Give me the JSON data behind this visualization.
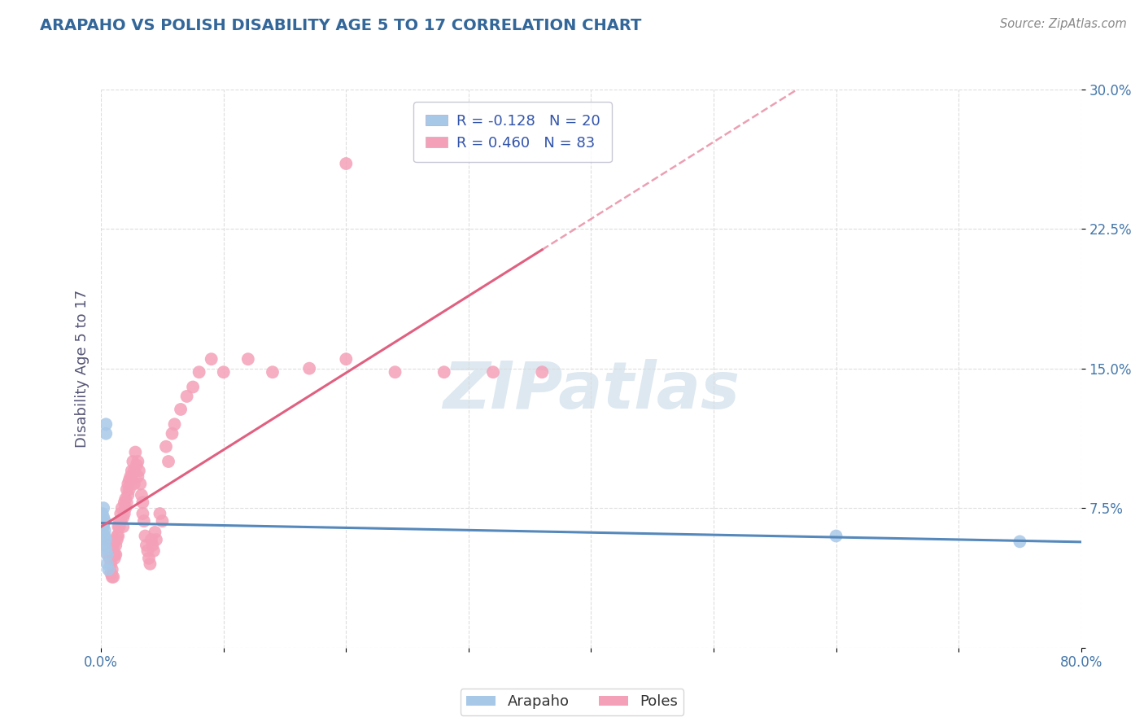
{
  "title": "ARAPAHO VS POLISH DISABILITY AGE 5 TO 17 CORRELATION CHART",
  "source": "Source: ZipAtlas.com",
  "ylabel": "Disability Age 5 to 17",
  "xlim": [
    0.0,
    0.8
  ],
  "ylim": [
    0.0,
    0.3
  ],
  "arapaho_R": -0.128,
  "arapaho_N": 20,
  "poles_R": 0.46,
  "poles_N": 83,
  "arapaho_color": "#a8c8e8",
  "poles_color": "#f4a0b8",
  "arapaho_line_color": "#5588bb",
  "poles_line_color": "#e06080",
  "background_color": "#ffffff",
  "grid_color": "#dddddd",
  "title_color": "#336699",
  "axis_label_color": "#555577",
  "tick_color": "#4477aa",
  "legend_R_color": "#3355aa",
  "watermark_color": "#dde8f0",
  "arapaho_x": [
    0.001,
    0.001,
    0.001,
    0.002,
    0.002,
    0.002,
    0.002,
    0.003,
    0.003,
    0.003,
    0.003,
    0.004,
    0.004,
    0.004,
    0.004,
    0.005,
    0.005,
    0.006,
    0.6,
    0.75
  ],
  "arapaho_y": [
    0.072,
    0.068,
    0.065,
    0.075,
    0.07,
    0.065,
    0.06,
    0.068,
    0.063,
    0.06,
    0.055,
    0.115,
    0.12,
    0.058,
    0.053,
    0.05,
    0.045,
    0.042,
    0.06,
    0.057
  ],
  "poles_x": [
    0.005,
    0.006,
    0.007,
    0.007,
    0.008,
    0.008,
    0.009,
    0.009,
    0.01,
    0.01,
    0.01,
    0.011,
    0.011,
    0.012,
    0.012,
    0.013,
    0.013,
    0.014,
    0.014,
    0.015,
    0.015,
    0.016,
    0.016,
    0.017,
    0.018,
    0.018,
    0.019,
    0.019,
    0.02,
    0.02,
    0.021,
    0.021,
    0.022,
    0.022,
    0.023,
    0.023,
    0.024,
    0.025,
    0.025,
    0.026,
    0.027,
    0.027,
    0.028,
    0.029,
    0.03,
    0.03,
    0.031,
    0.032,
    0.033,
    0.034,
    0.034,
    0.035,
    0.036,
    0.037,
    0.038,
    0.039,
    0.04,
    0.041,
    0.042,
    0.043,
    0.044,
    0.045,
    0.048,
    0.05,
    0.053,
    0.055,
    0.058,
    0.06,
    0.065,
    0.07,
    0.075,
    0.08,
    0.09,
    0.1,
    0.12,
    0.14,
    0.17,
    0.2,
    0.24,
    0.28,
    0.32,
    0.36,
    0.2
  ],
  "poles_y": [
    0.055,
    0.05,
    0.048,
    0.052,
    0.045,
    0.04,
    0.038,
    0.042,
    0.038,
    0.055,
    0.052,
    0.05,
    0.048,
    0.055,
    0.05,
    0.06,
    0.058,
    0.065,
    0.06,
    0.068,
    0.065,
    0.072,
    0.068,
    0.075,
    0.07,
    0.065,
    0.078,
    0.072,
    0.08,
    0.075,
    0.085,
    0.078,
    0.088,
    0.082,
    0.09,
    0.085,
    0.092,
    0.095,
    0.09,
    0.1,
    0.095,
    0.088,
    0.105,
    0.098,
    0.092,
    0.1,
    0.095,
    0.088,
    0.082,
    0.078,
    0.072,
    0.068,
    0.06,
    0.055,
    0.052,
    0.048,
    0.045,
    0.058,
    0.055,
    0.052,
    0.062,
    0.058,
    0.072,
    0.068,
    0.108,
    0.1,
    0.115,
    0.12,
    0.128,
    0.135,
    0.14,
    0.148,
    0.155,
    0.148,
    0.155,
    0.148,
    0.15,
    0.155,
    0.148,
    0.148,
    0.148,
    0.148,
    0.26
  ]
}
